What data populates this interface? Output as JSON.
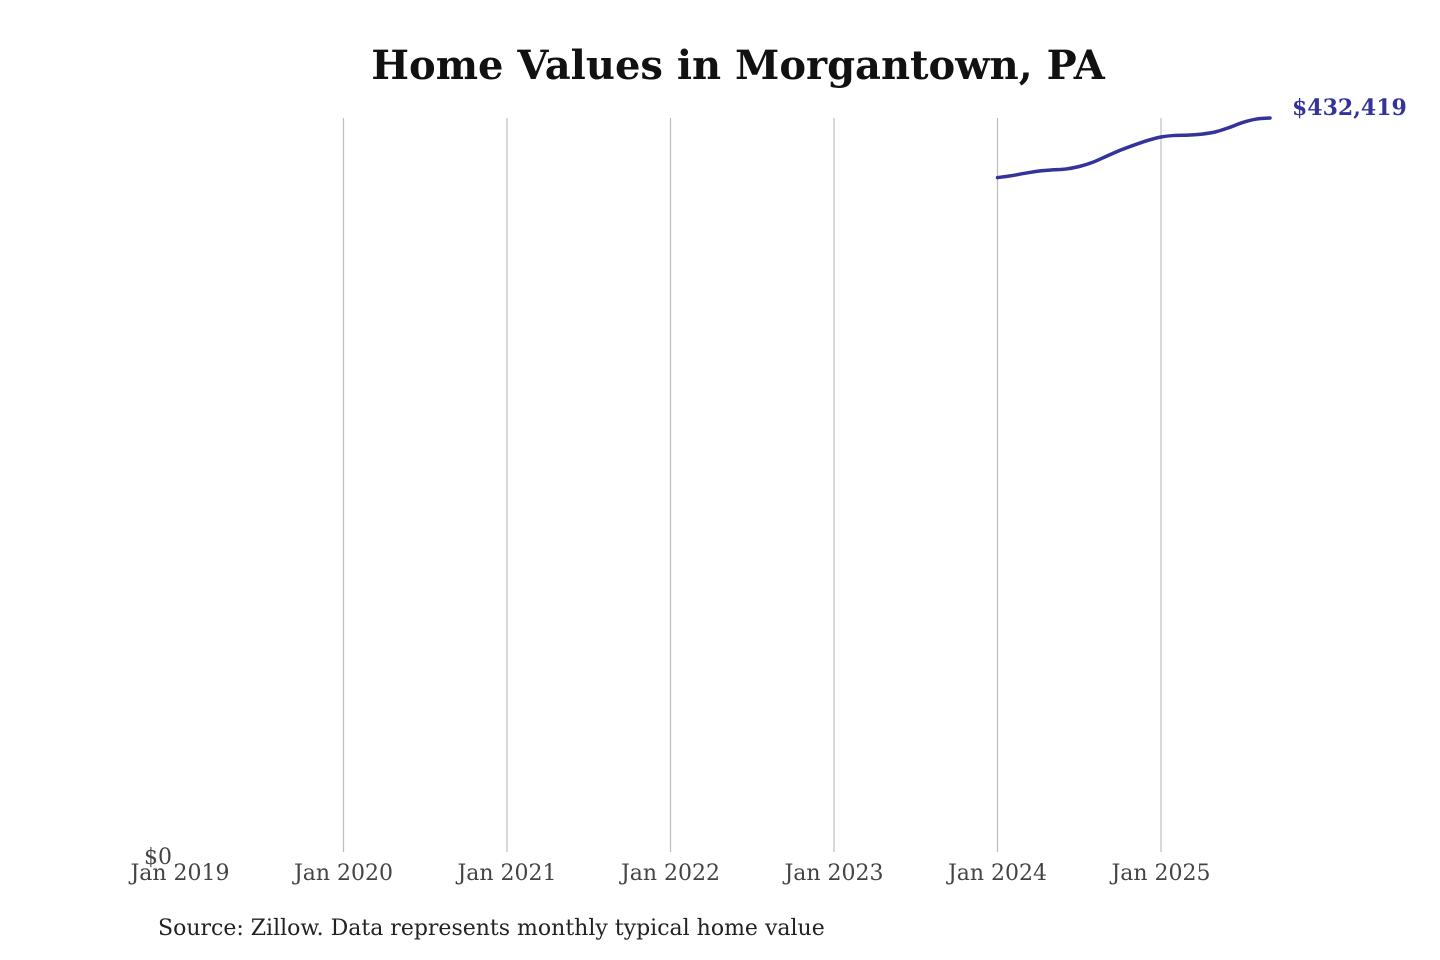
{
  "chart_data": {
    "type": "line",
    "title": "Home Values in Morgantown, PA",
    "source": "Source: Zillow. Data represents monthly typical home value",
    "xlabel": "",
    "ylabel": "",
    "x_ticks": [
      "Jan 2019",
      "Jan 2020",
      "Jan 2021",
      "Jan 2022",
      "Jan 2023",
      "Jan 2024",
      "Jan 2025"
    ],
    "y_ticks": [
      "$0"
    ],
    "ylim": [
      0,
      432419
    ],
    "xlim": [
      "2019-01",
      "2025-09"
    ],
    "grid": "vertical",
    "line_color": "#33339a",
    "end_label": "$432,419",
    "series": [
      {
        "x": [
          "2024-01",
          "2024-02",
          "2024-03",
          "2024-04",
          "2024-05",
          "2024-06",
          "2024-07",
          "2024-08",
          "2024-09",
          "2024-10",
          "2024-11",
          "2024-12",
          "2025-01",
          "2025-02",
          "2025-03",
          "2025-04",
          "2025-05",
          "2025-06",
          "2025-07",
          "2025-08",
          "2025-09"
        ],
        "values": [
          397500,
          398600,
          400000,
          401300,
          402000,
          402500,
          404000,
          406500,
          410000,
          413500,
          416500,
          419200,
          421300,
          422200,
          422400,
          423000,
          424300,
          426800,
          429800,
          431800,
          432419
        ]
      }
    ]
  }
}
